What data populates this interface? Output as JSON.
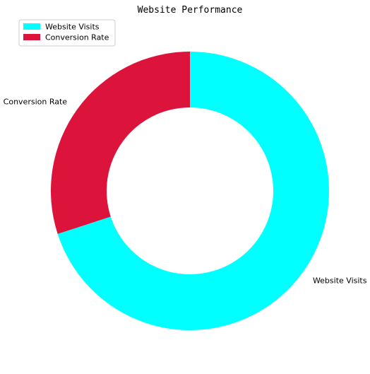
{
  "chart_data": {
    "type": "pie",
    "variant": "donut",
    "title": "Website Performance",
    "slices": [
      {
        "label": "Website Visits",
        "value": 70,
        "color": "#00FFFF"
      },
      {
        "label": "Conversion Rate",
        "value": 30,
        "color": "#DC143C"
      }
    ],
    "legend": {
      "placement": "top-left",
      "entries": [
        "Website Visits",
        "Conversion Rate"
      ]
    }
  }
}
